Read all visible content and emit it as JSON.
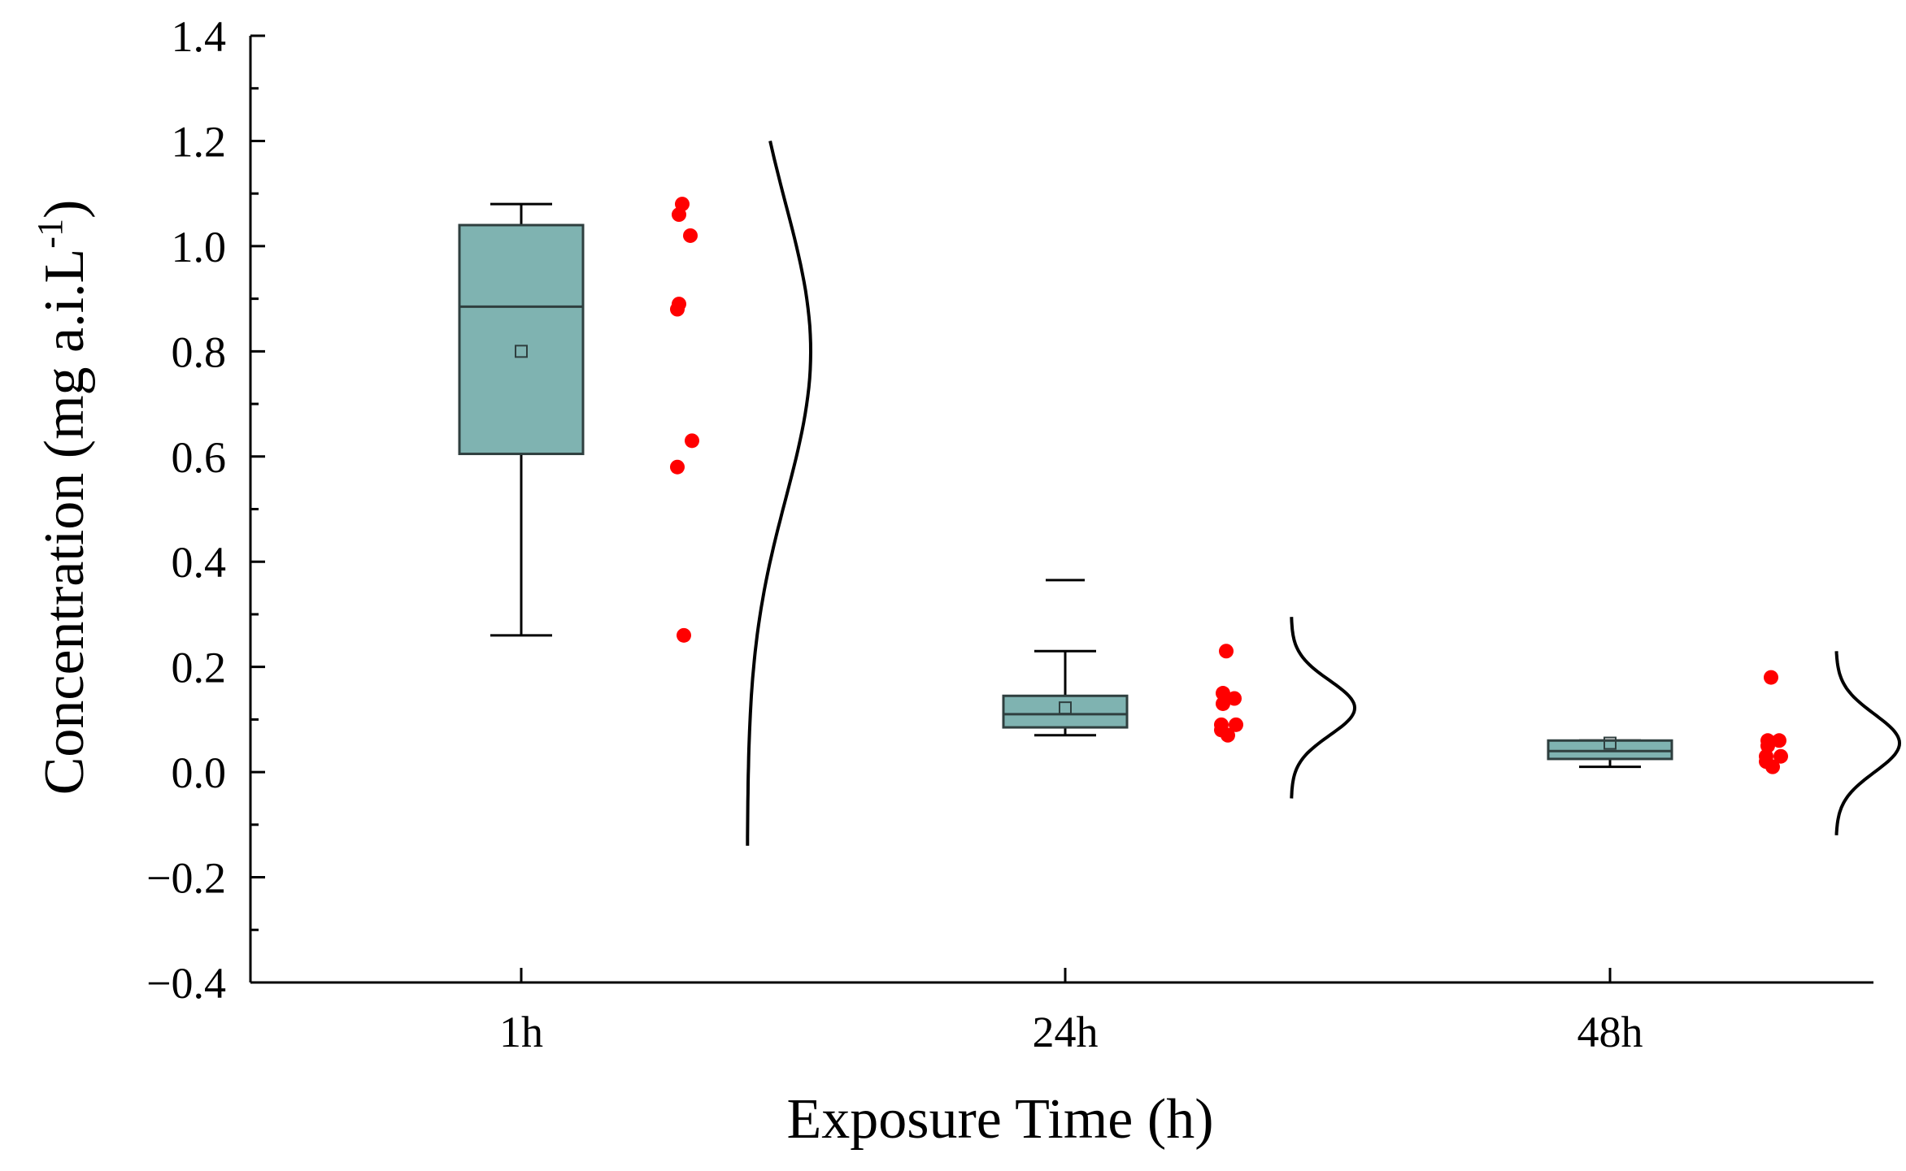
{
  "chart_data": {
    "type": "box",
    "xlabel": "Exposure Time (h)",
    "ylabel": "Concentration (mg a.i.L",
    "ylabel_sup": "-1",
    "ylabel_close": ")",
    "ylim": [
      -0.4,
      1.4
    ],
    "yticks": [
      -0.4,
      -0.2,
      0.0,
      0.2,
      0.4,
      0.6,
      0.8,
      1.0,
      1.2,
      1.4
    ],
    "ytick_labels": [
      "−0.4",
      "−0.2",
      "0.0",
      "0.2",
      "0.4",
      "0.6",
      "0.8",
      "1.0",
      "1.2",
      "1.4"
    ],
    "categories": [
      "1h",
      "24h",
      "48h"
    ],
    "colors": {
      "box_fill": "#7fb3b1",
      "box_edge": "#2f3f3f",
      "points": "#ff0000",
      "curve": "#000000"
    },
    "groups": [
      {
        "label": "1h",
        "box": {
          "q1": 0.605,
          "median": 0.885,
          "q3": 1.04,
          "whisker_low": 0.26,
          "whisker_high": 1.08,
          "mean": 0.8
        },
        "outliers": [],
        "points": [
          1.08,
          1.06,
          1.02,
          0.89,
          0.88,
          0.63,
          0.58,
          0.26
        ],
        "normal_curve": {
          "mean": 0.8,
          "sd": 0.28,
          "range": [
            -0.14,
            1.2
          ]
        }
      },
      {
        "label": "24h",
        "box": {
          "q1": 0.085,
          "median": 0.11,
          "q3": 0.145,
          "whisker_low": 0.07,
          "whisker_high": 0.23,
          "mean": 0.122
        },
        "outliers": [
          0.365
        ],
        "points": [
          0.23,
          0.15,
          0.14,
          0.13,
          0.09,
          0.09,
          0.08,
          0.07
        ],
        "normal_curve": {
          "mean": 0.122,
          "sd": 0.052,
          "range": [
            -0.05,
            0.295
          ]
        }
      },
      {
        "label": "48h",
        "box": {
          "q1": 0.025,
          "median": 0.04,
          "q3": 0.06,
          "whisker_low": 0.01,
          "whisker_high": 0.06,
          "mean": 0.055
        },
        "outliers": [],
        "points": [
          0.18,
          0.06,
          0.06,
          0.05,
          0.03,
          0.03,
          0.02,
          0.01
        ],
        "normal_curve": {
          "mean": 0.055,
          "sd": 0.055,
          "range": [
            -0.12,
            0.23
          ]
        }
      }
    ]
  }
}
